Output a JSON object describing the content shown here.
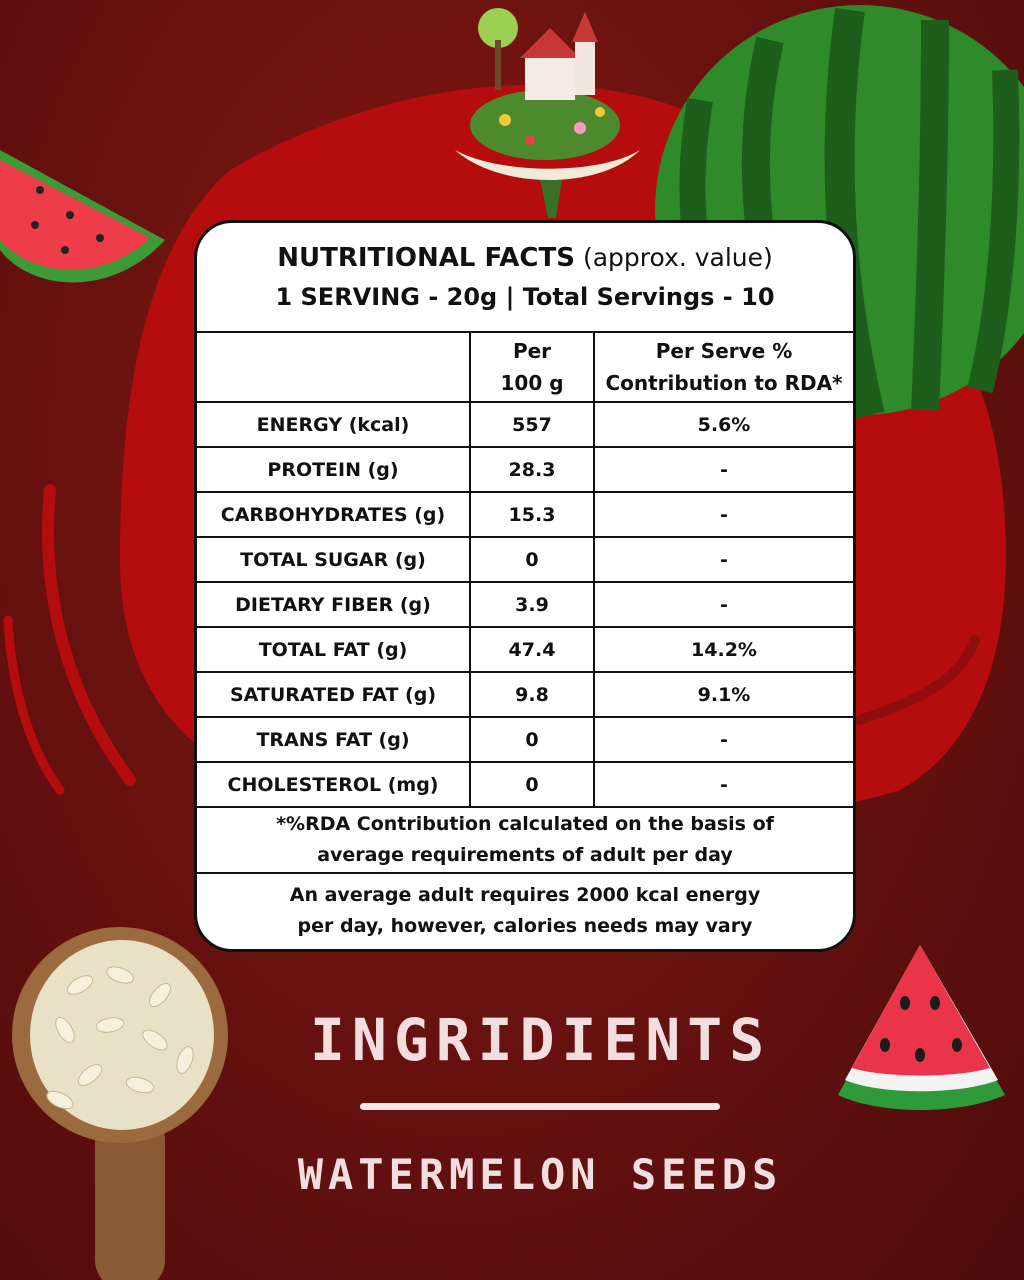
{
  "facts": {
    "title": "NUTRITIONAL FACTS",
    "title_note": "(approx. value)",
    "serving": "1 SERVING - 20g | Total Servings - 10",
    "col_per100": [
      "Per",
      "100 g"
    ],
    "col_rda": [
      "Per Serve %",
      "Contribution to RDA*"
    ],
    "rows": [
      {
        "name": "ENERGY (kcal)",
        "per100": "557",
        "rda": "5.6%"
      },
      {
        "name": "PROTEIN (g)",
        "per100": "28.3",
        "rda": "-"
      },
      {
        "name": "CARBOHYDRATES (g)",
        "per100": "15.3",
        "rda": "-"
      },
      {
        "name": "TOTAL SUGAR (g)",
        "per100": "0",
        "rda": "-"
      },
      {
        "name": "DIETARY FIBER (g)",
        "per100": "3.9",
        "rda": "-"
      },
      {
        "name": "TOTAL FAT (g)",
        "per100": "47.4",
        "rda": "14.2%"
      },
      {
        "name": "SATURATED FAT (g)",
        "per100": "9.8",
        "rda": "9.1%"
      },
      {
        "name": "TRANS FAT (g)",
        "per100": "0",
        "rda": "-"
      },
      {
        "name": "CHOLESTEROL (mg)",
        "per100": "0",
        "rda": "-"
      }
    ],
    "note1": [
      "*%RDA Contribution calculated on the basis of",
      "average requirements of adult per day"
    ],
    "note2": [
      "An average adult requires 2000 kcal energy",
      "per day, however, calories needs may vary"
    ]
  },
  "ingredients": {
    "heading": "INGRIDIENTS",
    "item": "WATERMELON SEEDS"
  },
  "colors": {
    "background": "#6a1210",
    "splash": "#b50d0d",
    "watermelon_rind": "#2f8a2a",
    "text_light": "#f2dede"
  }
}
